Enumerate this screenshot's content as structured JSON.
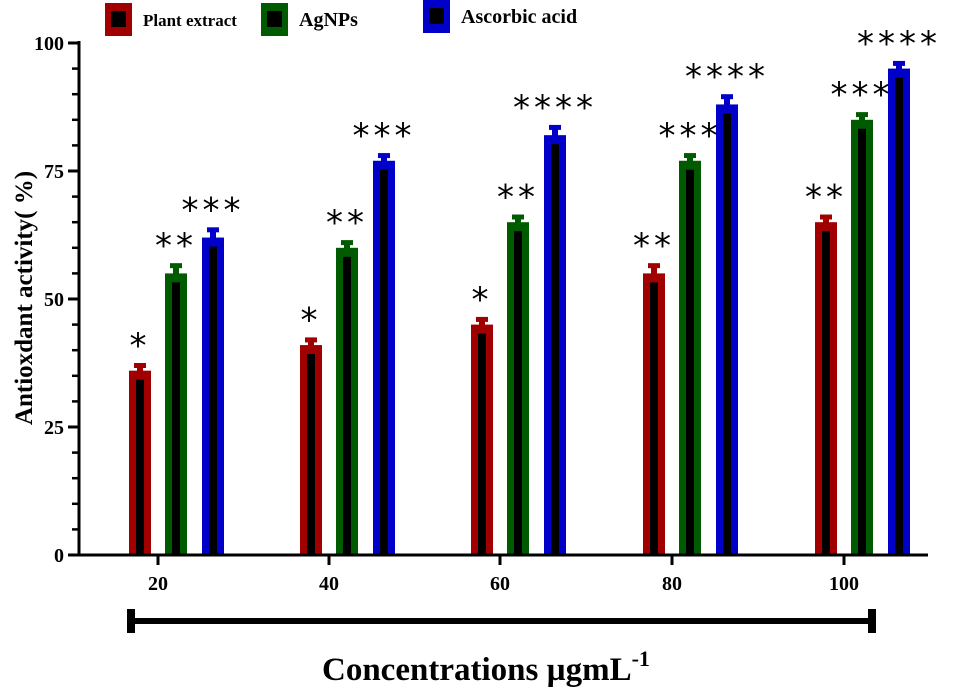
{
  "chart_data": {
    "type": "bar",
    "title": "",
    "xlabel": "Concentrations  µgmL",
    "xlabel_superscript": "-1",
    "ylabel": "Antioxdant activity( %)",
    "ylim": [
      0,
      100
    ],
    "yticks": [
      "0",
      "25",
      "50",
      "75",
      "100"
    ],
    "categories": [
      "20",
      "40",
      "60",
      "80",
      "100"
    ],
    "legend_position": "top",
    "grid": false,
    "series": [
      {
        "name": "Plant extract",
        "color": "#a00000",
        "values": [
          36,
          41,
          45,
          55,
          65
        ],
        "errors": [
          1.5,
          1.5,
          1.5,
          2,
          1.5
        ],
        "significance": [
          "*",
          "*",
          "*",
          "**",
          "**"
        ]
      },
      {
        "name": "AgNPs",
        "color": "#005a00",
        "values": [
          55,
          60,
          65,
          77,
          85
        ],
        "errors": [
          2,
          1.5,
          1.5,
          1.5,
          1.5
        ],
        "significance": [
          "**",
          "**",
          "**",
          "***",
          "***"
        ]
      },
      {
        "name": "Ascorbic acid",
        "color": "#0000c8",
        "values": [
          62,
          77,
          82,
          88,
          95
        ],
        "errors": [
          2,
          1.5,
          2,
          2,
          1.5
        ],
        "significance": [
          "***",
          "***",
          "****",
          "****",
          "****"
        ]
      }
    ]
  }
}
